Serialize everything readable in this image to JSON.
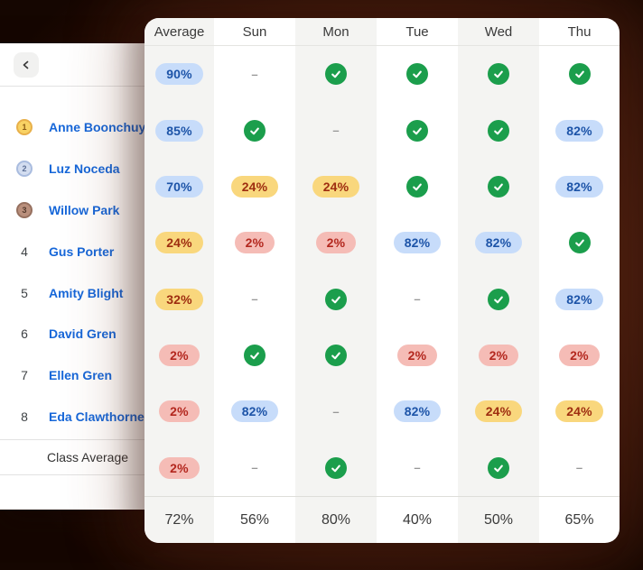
{
  "sidebar": {
    "back_icon": "chevron-left",
    "students": [
      {
        "rank": 1,
        "name": "Anne Boonchuy",
        "medal": "gold"
      },
      {
        "rank": 2,
        "name": "Luz Noceda",
        "medal": "silver"
      },
      {
        "rank": 3,
        "name": "Willow Park",
        "medal": "bronze"
      },
      {
        "rank": 4,
        "name": "Gus Porter",
        "medal": null
      },
      {
        "rank": 5,
        "name": "Amity Blight",
        "medal": null
      },
      {
        "rank": 6,
        "name": "David Gren",
        "medal": null
      },
      {
        "rank": 7,
        "name": "Ellen Gren",
        "medal": null
      },
      {
        "rank": 8,
        "name": "Eda Clawthorne",
        "medal": null
      }
    ],
    "footer_label": "Class Average"
  },
  "table": {
    "columns": [
      "Average",
      "Sun",
      "Mon",
      "Tue",
      "Wed",
      "Thu"
    ],
    "rows": [
      [
        {
          "kind": "pill",
          "color": "blue",
          "value": "90%"
        },
        {
          "kind": "dash",
          "value": "–"
        },
        {
          "kind": "check"
        },
        {
          "kind": "check"
        },
        {
          "kind": "check"
        },
        {
          "kind": "check"
        }
      ],
      [
        {
          "kind": "pill",
          "color": "blue",
          "value": "85%"
        },
        {
          "kind": "check"
        },
        {
          "kind": "dash",
          "value": "–"
        },
        {
          "kind": "check"
        },
        {
          "kind": "check"
        },
        {
          "kind": "pill",
          "color": "blue",
          "value": "82%"
        }
      ],
      [
        {
          "kind": "pill",
          "color": "blue",
          "value": "70%"
        },
        {
          "kind": "pill",
          "color": "yellow",
          "value": "24%"
        },
        {
          "kind": "pill",
          "color": "yellow",
          "value": "24%"
        },
        {
          "kind": "check"
        },
        {
          "kind": "check"
        },
        {
          "kind": "pill",
          "color": "blue",
          "value": "82%"
        }
      ],
      [
        {
          "kind": "pill",
          "color": "yellow",
          "value": "24%"
        },
        {
          "kind": "pill",
          "color": "red",
          "value": "2%"
        },
        {
          "kind": "pill",
          "color": "red",
          "value": "2%"
        },
        {
          "kind": "pill",
          "color": "blue",
          "value": "82%"
        },
        {
          "kind": "pill",
          "color": "blue",
          "value": "82%"
        },
        {
          "kind": "check"
        }
      ],
      [
        {
          "kind": "pill",
          "color": "yellow",
          "value": "32%"
        },
        {
          "kind": "dash",
          "value": "–"
        },
        {
          "kind": "check"
        },
        {
          "kind": "dash",
          "value": "–"
        },
        {
          "kind": "check"
        },
        {
          "kind": "pill",
          "color": "blue",
          "value": "82%"
        }
      ],
      [
        {
          "kind": "pill",
          "color": "red",
          "value": "2%"
        },
        {
          "kind": "check"
        },
        {
          "kind": "check"
        },
        {
          "kind": "pill",
          "color": "red",
          "value": "2%"
        },
        {
          "kind": "pill",
          "color": "red",
          "value": "2%"
        },
        {
          "kind": "pill",
          "color": "red",
          "value": "2%"
        }
      ],
      [
        {
          "kind": "pill",
          "color": "red",
          "value": "2%"
        },
        {
          "kind": "pill",
          "color": "blue",
          "value": "82%"
        },
        {
          "kind": "dash",
          "value": "–"
        },
        {
          "kind": "pill",
          "color": "blue",
          "value": "82%"
        },
        {
          "kind": "pill",
          "color": "yellow",
          "value": "24%"
        },
        {
          "kind": "pill",
          "color": "yellow",
          "value": "24%"
        }
      ],
      [
        {
          "kind": "pill",
          "color": "red",
          "value": "2%"
        },
        {
          "kind": "dash",
          "value": "–"
        },
        {
          "kind": "check"
        },
        {
          "kind": "dash",
          "value": "–"
        },
        {
          "kind": "check"
        },
        {
          "kind": "dash",
          "value": "–"
        }
      ]
    ],
    "footer": [
      "72%",
      "56%",
      "80%",
      "40%",
      "50%",
      "65%"
    ]
  },
  "colors": {
    "student_name_blue": "#1667d9",
    "pill_blue_bg": "#c7dcfa",
    "pill_blue_text": "#1d54a8",
    "pill_yellow_bg": "#f9d77d",
    "pill_yellow_text": "#9e2d10",
    "pill_red_bg": "#f5bcb6",
    "pill_red_text": "#b3271e",
    "check_green": "#1b9e4c",
    "medal_gold_bg": "#f8d264",
    "medal_gold_border": "#e8b04a",
    "medal_gold_text": "#8a5a14",
    "medal_silver_bg": "#d3ddf0",
    "medal_silver_border": "#a9bcdf",
    "medal_silver_text": "#5c6f96",
    "medal_bronze_bg": "#b98f7c",
    "medal_bronze_border": "#96705f",
    "medal_bronze_text": "#53392d"
  }
}
